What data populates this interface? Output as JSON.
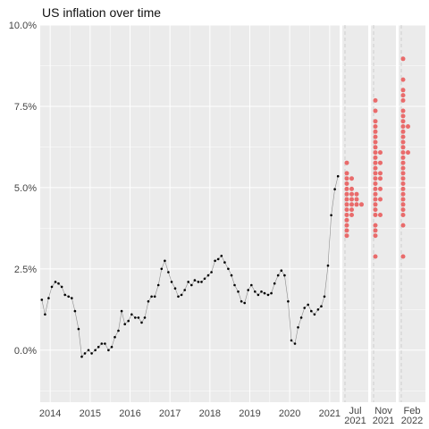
{
  "chart_data": {
    "type": "line",
    "title": "US inflation over time",
    "xlabel": "",
    "ylabel": "",
    "ylim": [
      -1.6,
      10.0
    ],
    "y_ticks": [
      "0.0%",
      "2.5%",
      "5.0%",
      "7.5%",
      "10.0%"
    ],
    "x_ticks": [
      "2014",
      "2015",
      "2016",
      "2017",
      "2018",
      "2019",
      "2020",
      "2021"
    ],
    "grid": true,
    "legend": "none",
    "colors": {
      "panel_background": "#ebebeb",
      "grid": "#ffffff",
      "history_line": "#8c8c8c",
      "history_points": "#000000",
      "forecast_points": "#e96b6b"
    },
    "series": [
      {
        "values": [
          [
            2013.79,
            1.55
          ],
          [
            2013.87,
            1.1
          ],
          [
            2013.96,
            1.6
          ],
          [
            2014.04,
            1.95
          ],
          [
            2014.13,
            2.1
          ],
          [
            2014.21,
            2.05
          ],
          [
            2014.29,
            1.95
          ],
          [
            2014.37,
            1.7
          ],
          [
            2014.46,
            1.65
          ],
          [
            2014.54,
            1.6
          ],
          [
            2014.62,
            1.2
          ],
          [
            2014.71,
            0.65
          ],
          [
            2014.79,
            -0.2
          ],
          [
            2014.87,
            -0.1
          ],
          [
            2014.96,
            0.0
          ],
          [
            2015.04,
            -0.1
          ],
          [
            2015.13,
            0.0
          ],
          [
            2015.21,
            0.1
          ],
          [
            2015.29,
            0.2
          ],
          [
            2015.37,
            0.2
          ],
          [
            2015.46,
            0.0
          ],
          [
            2015.54,
            0.1
          ],
          [
            2015.62,
            0.4
          ],
          [
            2015.71,
            0.6
          ],
          [
            2015.79,
            1.2
          ],
          [
            2015.87,
            0.8
          ],
          [
            2015.96,
            0.9
          ],
          [
            2016.04,
            1.1
          ],
          [
            2016.13,
            1.0
          ],
          [
            2016.21,
            1.0
          ],
          [
            2016.29,
            0.85
          ],
          [
            2016.37,
            1.0
          ],
          [
            2016.46,
            1.5
          ],
          [
            2016.54,
            1.65
          ],
          [
            2016.62,
            1.65
          ],
          [
            2016.71,
            2.0
          ],
          [
            2016.79,
            2.5
          ],
          [
            2016.87,
            2.75
          ],
          [
            2016.96,
            2.4
          ],
          [
            2017.04,
            2.1
          ],
          [
            2017.13,
            1.9
          ],
          [
            2017.21,
            1.65
          ],
          [
            2017.29,
            1.7
          ],
          [
            2017.37,
            1.85
          ],
          [
            2017.46,
            2.1
          ],
          [
            2017.54,
            2.0
          ],
          [
            2017.62,
            2.15
          ],
          [
            2017.71,
            2.1
          ],
          [
            2017.79,
            2.1
          ],
          [
            2017.87,
            2.2
          ],
          [
            2017.96,
            2.3
          ],
          [
            2018.04,
            2.4
          ],
          [
            2018.13,
            2.75
          ],
          [
            2018.21,
            2.8
          ],
          [
            2018.29,
            2.9
          ],
          [
            2018.37,
            2.7
          ],
          [
            2018.46,
            2.5
          ],
          [
            2018.54,
            2.3
          ],
          [
            2018.62,
            2.0
          ],
          [
            2018.71,
            1.8
          ],
          [
            2018.79,
            1.5
          ],
          [
            2018.87,
            1.45
          ],
          [
            2018.96,
            1.85
          ],
          [
            2019.04,
            2.0
          ],
          [
            2019.13,
            1.8
          ],
          [
            2019.21,
            1.7
          ],
          [
            2019.29,
            1.8
          ],
          [
            2019.37,
            1.75
          ],
          [
            2019.46,
            1.7
          ],
          [
            2019.54,
            1.75
          ],
          [
            2019.62,
            2.05
          ],
          [
            2019.71,
            2.3
          ],
          [
            2019.79,
            2.45
          ],
          [
            2019.87,
            2.3
          ],
          [
            2019.96,
            1.5
          ],
          [
            2020.04,
            0.3
          ],
          [
            2020.13,
            0.2
          ],
          [
            2020.21,
            0.7
          ],
          [
            2020.29,
            1.0
          ],
          [
            2020.37,
            1.3
          ],
          [
            2020.46,
            1.4
          ],
          [
            2020.54,
            1.2
          ],
          [
            2020.62,
            1.1
          ],
          [
            2020.71,
            1.25
          ],
          [
            2020.79,
            1.35
          ],
          [
            2020.87,
            1.65
          ],
          [
            2020.96,
            2.6
          ],
          [
            2021.04,
            4.15
          ],
          [
            2021.13,
            4.95
          ],
          [
            2021.21,
            5.35
          ]
        ]
      }
    ],
    "forecast_panels": [
      {
        "label": "Jul\n2021",
        "values": [
          3.5,
          3.7,
          3.85,
          4.0,
          4.1,
          4.2,
          4.3,
          4.35,
          4.4,
          4.45,
          4.5,
          4.55,
          4.6,
          4.65,
          4.7,
          4.75,
          4.8,
          4.85,
          4.9,
          5.0,
          5.1,
          5.2,
          5.35,
          5.5,
          5.7
        ]
      },
      {
        "label": "Nov\n2021",
        "values": [
          2.8,
          3.5,
          3.7,
          3.9,
          4.1,
          4.2,
          4.35,
          4.5,
          4.6,
          4.7,
          4.8,
          4.9,
          5.0,
          5.1,
          5.2,
          5.3,
          5.4,
          5.5,
          5.6,
          5.7,
          5.8,
          5.9,
          6.0,
          6.1,
          6.2,
          6.35,
          6.5,
          6.7,
          6.9,
          7.1,
          7.3,
          7.7
        ]
      },
      {
        "label": "Feb\n2022",
        "values": [
          2.8,
          3.9,
          4.1,
          4.3,
          4.5,
          4.7,
          4.85,
          5.0,
          5.15,
          5.3,
          5.45,
          5.6,
          5.75,
          5.9,
          6.0,
          6.1,
          6.2,
          6.35,
          6.5,
          6.65,
          6.8,
          6.95,
          7.1,
          7.25,
          7.4,
          7.6,
          7.8,
          8.0,
          8.3,
          9.0
        ]
      }
    ]
  }
}
